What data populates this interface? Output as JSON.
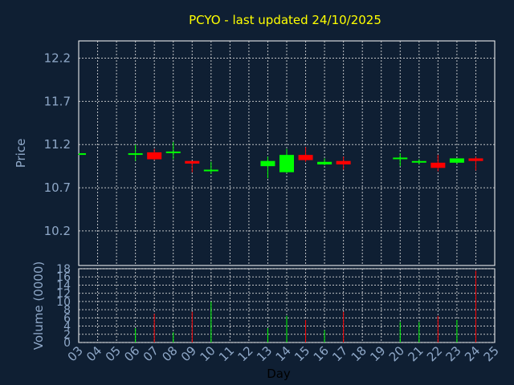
{
  "chart_data": {
    "type": "candlestick",
    "title": "PCYO - last updated 24/10/2025",
    "xlabel": "Day",
    "ylabel": "Price",
    "volume_label": "Volume (0000)",
    "x_ticks": [
      "03",
      "04",
      "05",
      "06",
      "07",
      "08",
      "09",
      "10",
      "11",
      "12",
      "13",
      "14",
      "15",
      "16",
      "17",
      "18",
      "19",
      "20",
      "21",
      "22",
      "23",
      "24",
      "25"
    ],
    "y_ticks": [
      "10.2",
      "10.7",
      "11.2",
      "11.7",
      "12.2"
    ],
    "y_tick_values": [
      10.2,
      10.7,
      11.2,
      11.7,
      12.2
    ],
    "ylim": [
      9.8,
      12.4
    ],
    "volume_ticks": [
      "0",
      "2",
      "4",
      "6",
      "8",
      "10",
      "12",
      "14",
      "16",
      "18"
    ],
    "volume_tick_values": [
      0,
      2,
      4,
      6,
      8,
      10,
      12,
      14,
      16,
      18
    ],
    "volume_ylim": [
      0,
      18
    ],
    "grid": true,
    "colors": {
      "up": "#00ff00",
      "down": "#ff0000",
      "background": "#0f1f33",
      "title": "#ffff00",
      "tick": "#8fa8c8"
    },
    "candles": [
      {
        "day": 3,
        "open": 11.08,
        "close": 11.09,
        "high": 11.09,
        "low": 11.08,
        "volume": 0
      },
      {
        "day": 6,
        "open": 11.08,
        "close": 11.09,
        "high": 11.2,
        "low": 11.01,
        "volume": 3.5
      },
      {
        "day": 7,
        "open": 11.11,
        "close": 11.03,
        "high": 11.15,
        "low": 11.02,
        "volume": 7
      },
      {
        "day": 8,
        "open": 11.1,
        "close": 11.11,
        "high": 11.23,
        "low": 11.03,
        "volume": 2.5
      },
      {
        "day": 9,
        "open": 11.01,
        "close": 10.98,
        "high": 11.01,
        "low": 10.88,
        "volume": 7.5
      },
      {
        "day": 10,
        "open": 10.89,
        "close": 10.9,
        "high": 11.0,
        "low": 10.86,
        "volume": 10
      },
      {
        "day": 13,
        "open": 10.95,
        "close": 11.01,
        "high": 11.06,
        "low": 10.81,
        "volume": 3.5
      },
      {
        "day": 14,
        "open": 10.88,
        "close": 11.08,
        "high": 11.15,
        "low": 10.87,
        "volume": 6.5
      },
      {
        "day": 15,
        "open": 11.08,
        "close": 11.02,
        "high": 11.17,
        "low": 11.0,
        "volume": 5.5
      },
      {
        "day": 16,
        "open": 10.97,
        "close": 11.0,
        "high": 11.04,
        "low": 10.96,
        "volume": 3
      },
      {
        "day": 17,
        "open": 11.01,
        "close": 10.97,
        "high": 11.06,
        "low": 10.91,
        "volume": 7.5
      },
      {
        "day": 20,
        "open": 11.03,
        "close": 11.04,
        "high": 11.1,
        "low": 10.95,
        "volume": 5
      },
      {
        "day": 21,
        "open": 10.99,
        "close": 11.0,
        "high": 11.03,
        "low": 10.97,
        "volume": 5
      },
      {
        "day": 22,
        "open": 10.99,
        "close": 10.93,
        "high": 11.08,
        "low": 10.89,
        "volume": 6.5
      },
      {
        "day": 23,
        "open": 10.99,
        "close": 11.04,
        "high": 11.04,
        "low": 10.98,
        "volume": 5.5
      },
      {
        "day": 24,
        "open": 11.04,
        "close": 11.01,
        "high": 11.06,
        "low": 10.9,
        "volume": 17.5
      }
    ]
  }
}
